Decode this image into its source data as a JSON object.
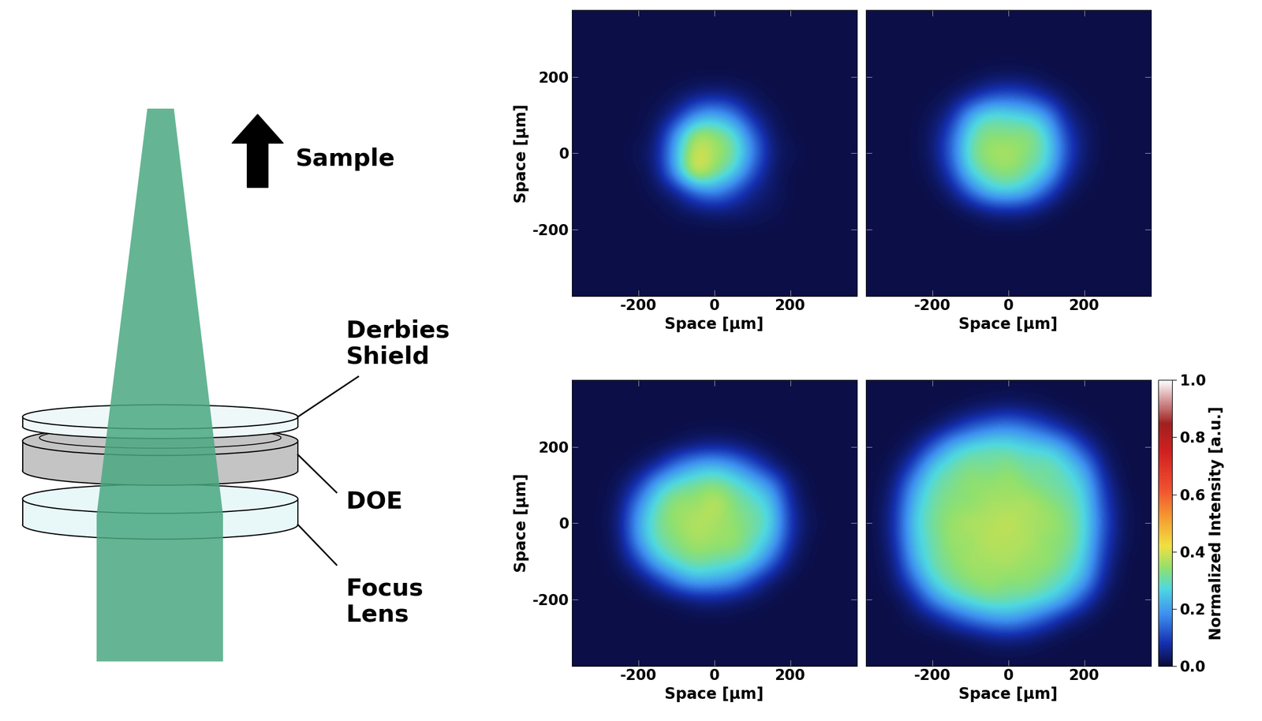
{
  "diagram": {
    "sample_label": "Sample",
    "components": [
      {
        "label": "Derbies\nShield"
      },
      {
        "label": "DOE"
      },
      {
        "label": "Focus\nLens"
      }
    ]
  },
  "chart_data": [
    {
      "type": "heatmap",
      "x_label": "Space [µm]",
      "y_label": "Space [µm]",
      "xlim": [
        -375,
        375
      ],
      "ylim": [
        -375,
        375
      ],
      "xticks": [
        -200,
        0,
        200
      ],
      "yticks": [
        -200,
        0,
        200
      ],
      "tick_labels": true,
      "cells": [
        [
          0.01,
          0.01,
          0.01,
          0.01,
          0.01,
          0.01,
          0.01,
          0.01,
          0.01,
          0.01,
          0.01,
          0.01,
          0.01,
          0.01,
          0.01
        ],
        [
          0.01,
          0.01,
          0.01,
          0.01,
          0.01,
          0.01,
          0.01,
          0.01,
          0.01,
          0.01,
          0.01,
          0.01,
          0.01,
          0.01,
          0.01
        ],
        [
          0.01,
          0.01,
          0.01,
          0.01,
          0.01,
          0.01,
          0.01,
          0.01,
          0.01,
          0.01,
          0.01,
          0.01,
          0.01,
          0.01,
          0.01
        ],
        [
          0.01,
          0.01,
          0.01,
          0.01,
          0.01,
          0.01,
          0.01,
          0.01,
          0.01,
          0.01,
          0.01,
          0.01,
          0.01,
          0.01,
          0.01
        ],
        [
          0.01,
          0.01,
          0.01,
          0.01,
          0.01,
          0.02,
          0.04,
          0.05,
          0.04,
          0.02,
          0.01,
          0.01,
          0.01,
          0.01,
          0.01
        ],
        [
          0.01,
          0.01,
          0.01,
          0.01,
          0.02,
          0.06,
          0.18,
          0.22,
          0.16,
          0.05,
          0.02,
          0.01,
          0.01,
          0.01,
          0.01
        ],
        [
          0.01,
          0.01,
          0.01,
          0.01,
          0.03,
          0.2,
          0.38,
          0.35,
          0.3,
          0.14,
          0.03,
          0.01,
          0.01,
          0.01,
          0.01
        ],
        [
          0.01,
          0.01,
          0.01,
          0.02,
          0.05,
          0.24,
          0.42,
          0.36,
          0.33,
          0.18,
          0.04,
          0.02,
          0.01,
          0.01,
          0.01
        ],
        [
          0.01,
          0.01,
          0.01,
          0.01,
          0.04,
          0.22,
          0.45,
          0.34,
          0.28,
          0.12,
          0.03,
          0.01,
          0.01,
          0.01,
          0.01
        ],
        [
          0.01,
          0.01,
          0.01,
          0.01,
          0.02,
          0.05,
          0.15,
          0.2,
          0.12,
          0.05,
          0.03,
          0.01,
          0.01,
          0.01,
          0.01
        ],
        [
          0.01,
          0.01,
          0.01,
          0.01,
          0.01,
          0.02,
          0.03,
          0.04,
          0.04,
          0.03,
          0.02,
          0.01,
          0.01,
          0.01,
          0.01
        ],
        [
          0.01,
          0.01,
          0.01,
          0.01,
          0.01,
          0.01,
          0.01,
          0.01,
          0.01,
          0.01,
          0.01,
          0.01,
          0.01,
          0.01,
          0.01
        ],
        [
          0.01,
          0.01,
          0.01,
          0.01,
          0.01,
          0.01,
          0.01,
          0.01,
          0.01,
          0.01,
          0.01,
          0.01,
          0.01,
          0.01,
          0.01
        ],
        [
          0.01,
          0.01,
          0.01,
          0.01,
          0.01,
          0.01,
          0.01,
          0.01,
          0.01,
          0.01,
          0.01,
          0.01,
          0.01,
          0.01,
          0.01
        ],
        [
          0.01,
          0.01,
          0.01,
          0.01,
          0.01,
          0.01,
          0.01,
          0.01,
          0.01,
          0.01,
          0.01,
          0.01,
          0.01,
          0.01,
          0.01
        ]
      ]
    },
    {
      "type": "heatmap",
      "x_label": "Space [µm]",
      "xlim": [
        -375,
        375
      ],
      "ylim": [
        -375,
        375
      ],
      "xticks": [
        -200,
        0,
        200
      ],
      "yticks": [
        -200,
        0,
        200
      ],
      "tick_labels": "x",
      "cells": [
        [
          0.01,
          0.01,
          0.01,
          0.01,
          0.01,
          0.01,
          0.01,
          0.01,
          0.01,
          0.01,
          0.01,
          0.01,
          0.01,
          0.01,
          0.01
        ],
        [
          0.01,
          0.01,
          0.01,
          0.01,
          0.01,
          0.01,
          0.01,
          0.01,
          0.01,
          0.01,
          0.01,
          0.01,
          0.01,
          0.01,
          0.01
        ],
        [
          0.01,
          0.01,
          0.01,
          0.01,
          0.01,
          0.01,
          0.01,
          0.01,
          0.01,
          0.01,
          0.01,
          0.01,
          0.01,
          0.01,
          0.01
        ],
        [
          0.01,
          0.01,
          0.01,
          0.01,
          0.01,
          0.01,
          0.02,
          0.02,
          0.02,
          0.01,
          0.01,
          0.01,
          0.01,
          0.01,
          0.01
        ],
        [
          0.01,
          0.01,
          0.01,
          0.01,
          0.02,
          0.05,
          0.1,
          0.12,
          0.1,
          0.05,
          0.02,
          0.01,
          0.01,
          0.01,
          0.01
        ],
        [
          0.01,
          0.01,
          0.01,
          0.02,
          0.06,
          0.22,
          0.3,
          0.28,
          0.26,
          0.2,
          0.05,
          0.02,
          0.01,
          0.01,
          0.01
        ],
        [
          0.01,
          0.01,
          0.01,
          0.03,
          0.12,
          0.3,
          0.34,
          0.32,
          0.35,
          0.28,
          0.1,
          0.03,
          0.01,
          0.01,
          0.01
        ],
        [
          0.01,
          0.01,
          0.01,
          0.03,
          0.14,
          0.32,
          0.36,
          0.38,
          0.33,
          0.3,
          0.12,
          0.03,
          0.01,
          0.01,
          0.01
        ],
        [
          0.01,
          0.01,
          0.01,
          0.02,
          0.1,
          0.28,
          0.33,
          0.35,
          0.31,
          0.26,
          0.08,
          0.02,
          0.01,
          0.01,
          0.01
        ],
        [
          0.01,
          0.01,
          0.01,
          0.01,
          0.04,
          0.15,
          0.26,
          0.28,
          0.24,
          0.12,
          0.03,
          0.01,
          0.01,
          0.01,
          0.01
        ],
        [
          0.01,
          0.01,
          0.01,
          0.01,
          0.01,
          0.02,
          0.05,
          0.06,
          0.05,
          0.02,
          0.01,
          0.01,
          0.01,
          0.01,
          0.01
        ],
        [
          0.01,
          0.01,
          0.01,
          0.01,
          0.01,
          0.01,
          0.01,
          0.01,
          0.01,
          0.01,
          0.01,
          0.01,
          0.01,
          0.01,
          0.01
        ],
        [
          0.01,
          0.01,
          0.01,
          0.01,
          0.01,
          0.01,
          0.01,
          0.01,
          0.01,
          0.01,
          0.01,
          0.01,
          0.01,
          0.01,
          0.01
        ],
        [
          0.01,
          0.01,
          0.01,
          0.01,
          0.01,
          0.01,
          0.01,
          0.01,
          0.01,
          0.01,
          0.01,
          0.01,
          0.01,
          0.01,
          0.01
        ],
        [
          0.01,
          0.01,
          0.01,
          0.01,
          0.01,
          0.01,
          0.01,
          0.01,
          0.01,
          0.01,
          0.01,
          0.01,
          0.01,
          0.01,
          0.01
        ]
      ]
    },
    {
      "type": "heatmap",
      "x_label": "Space [µm]",
      "y_label": "Space [µm]",
      "xlim": [
        -375,
        375
      ],
      "ylim": [
        -375,
        375
      ],
      "xticks": [
        -200,
        0,
        200
      ],
      "yticks": [
        -200,
        0,
        200
      ],
      "tick_labels": true,
      "cells": [
        [
          0.01,
          0.01,
          0.01,
          0.01,
          0.01,
          0.01,
          0.01,
          0.01,
          0.01,
          0.01,
          0.01,
          0.01,
          0.01,
          0.01,
          0.01
        ],
        [
          0.01,
          0.01,
          0.01,
          0.01,
          0.01,
          0.01,
          0.01,
          0.01,
          0.01,
          0.01,
          0.01,
          0.01,
          0.01,
          0.01,
          0.01
        ],
        [
          0.01,
          0.01,
          0.01,
          0.01,
          0.01,
          0.01,
          0.01,
          0.01,
          0.01,
          0.01,
          0.01,
          0.01,
          0.01,
          0.01,
          0.01
        ],
        [
          0.01,
          0.01,
          0.01,
          0.01,
          0.01,
          0.02,
          0.04,
          0.05,
          0.04,
          0.02,
          0.01,
          0.01,
          0.01,
          0.01,
          0.01
        ],
        [
          0.01,
          0.01,
          0.01,
          0.02,
          0.06,
          0.16,
          0.22,
          0.24,
          0.2,
          0.12,
          0.04,
          0.01,
          0.01,
          0.01,
          0.01
        ],
        [
          0.01,
          0.01,
          0.02,
          0.08,
          0.24,
          0.3,
          0.32,
          0.34,
          0.3,
          0.26,
          0.18,
          0.04,
          0.01,
          0.01,
          0.01
        ],
        [
          0.01,
          0.01,
          0.03,
          0.18,
          0.3,
          0.36,
          0.34,
          0.4,
          0.33,
          0.3,
          0.26,
          0.06,
          0.01,
          0.01,
          0.01
        ],
        [
          0.01,
          0.01,
          0.04,
          0.22,
          0.32,
          0.35,
          0.38,
          0.36,
          0.34,
          0.32,
          0.28,
          0.08,
          0.02,
          0.01,
          0.01
        ],
        [
          0.01,
          0.01,
          0.03,
          0.2,
          0.31,
          0.33,
          0.37,
          0.35,
          0.36,
          0.3,
          0.24,
          0.06,
          0.01,
          0.01,
          0.01
        ],
        [
          0.01,
          0.01,
          0.02,
          0.1,
          0.25,
          0.3,
          0.33,
          0.31,
          0.3,
          0.27,
          0.14,
          0.03,
          0.01,
          0.01,
          0.01
        ],
        [
          0.01,
          0.01,
          0.01,
          0.02,
          0.08,
          0.18,
          0.24,
          0.22,
          0.2,
          0.1,
          0.03,
          0.01,
          0.01,
          0.01,
          0.01
        ],
        [
          0.01,
          0.01,
          0.01,
          0.01,
          0.01,
          0.02,
          0.04,
          0.05,
          0.03,
          0.02,
          0.01,
          0.01,
          0.01,
          0.01,
          0.01
        ],
        [
          0.01,
          0.01,
          0.01,
          0.01,
          0.01,
          0.01,
          0.01,
          0.01,
          0.01,
          0.01,
          0.01,
          0.01,
          0.01,
          0.01,
          0.01
        ],
        [
          0.01,
          0.01,
          0.01,
          0.01,
          0.01,
          0.01,
          0.01,
          0.01,
          0.01,
          0.01,
          0.01,
          0.01,
          0.01,
          0.01,
          0.01
        ],
        [
          0.01,
          0.01,
          0.01,
          0.01,
          0.01,
          0.01,
          0.01,
          0.01,
          0.01,
          0.01,
          0.01,
          0.01,
          0.01,
          0.01,
          0.01
        ]
      ]
    },
    {
      "type": "heatmap",
      "x_label": "Space [µm]",
      "xlim": [
        -375,
        375
      ],
      "ylim": [
        -375,
        375
      ],
      "xticks": [
        -200,
        0,
        200
      ],
      "yticks": [
        -200,
        0,
        200
      ],
      "tick_labels": "x",
      "colorbar_label": "Normalized Intensity [a.u.]",
      "colorbar_range": [
        0.0,
        1.0
      ],
      "colorbar_ticks": [
        {
          "value": 0,
          "label": "0.0"
        },
        {
          "value": 0.2,
          "label": "0.2"
        },
        {
          "value": 0.4,
          "label": "0.4"
        },
        {
          "value": 0.6,
          "label": "0.6"
        },
        {
          "value": 0.8,
          "label": "0.8"
        },
        {
          "value": 1,
          "label": "1.0"
        }
      ],
      "cells": [
        [
          0.01,
          0.01,
          0.01,
          0.01,
          0.01,
          0.01,
          0.01,
          0.01,
          0.01,
          0.01,
          0.01,
          0.01,
          0.01,
          0.01,
          0.01
        ],
        [
          0.01,
          0.01,
          0.01,
          0.01,
          0.01,
          0.02,
          0.03,
          0.04,
          0.03,
          0.02,
          0.01,
          0.01,
          0.01,
          0.01,
          0.01
        ],
        [
          0.01,
          0.01,
          0.01,
          0.02,
          0.06,
          0.12,
          0.16,
          0.18,
          0.15,
          0.1,
          0.05,
          0.02,
          0.01,
          0.01,
          0.01
        ],
        [
          0.01,
          0.01,
          0.03,
          0.12,
          0.24,
          0.28,
          0.3,
          0.29,
          0.27,
          0.26,
          0.2,
          0.08,
          0.02,
          0.01,
          0.01
        ],
        [
          0.01,
          0.02,
          0.1,
          0.26,
          0.3,
          0.33,
          0.31,
          0.34,
          0.3,
          0.32,
          0.28,
          0.2,
          0.04,
          0.01,
          0.01
        ],
        [
          0.01,
          0.04,
          0.2,
          0.3,
          0.32,
          0.35,
          0.34,
          0.36,
          0.33,
          0.31,
          0.3,
          0.26,
          0.08,
          0.01,
          0.01
        ],
        [
          0.01,
          0.06,
          0.24,
          0.31,
          0.34,
          0.33,
          0.37,
          0.35,
          0.38,
          0.34,
          0.32,
          0.28,
          0.1,
          0.02,
          0.01
        ],
        [
          0.01,
          0.07,
          0.26,
          0.32,
          0.35,
          0.38,
          0.36,
          0.4,
          0.35,
          0.37,
          0.33,
          0.29,
          0.12,
          0.02,
          0.01
        ],
        [
          0.01,
          0.06,
          0.25,
          0.3,
          0.36,
          0.34,
          0.39,
          0.36,
          0.38,
          0.33,
          0.34,
          0.28,
          0.1,
          0.02,
          0.01
        ],
        [
          0.01,
          0.04,
          0.22,
          0.31,
          0.33,
          0.37,
          0.35,
          0.38,
          0.34,
          0.36,
          0.31,
          0.26,
          0.08,
          0.01,
          0.01
        ],
        [
          0.01,
          0.03,
          0.14,
          0.28,
          0.32,
          0.34,
          0.36,
          0.33,
          0.35,
          0.31,
          0.29,
          0.22,
          0.05,
          0.01,
          0.01
        ],
        [
          0.01,
          0.01,
          0.05,
          0.18,
          0.26,
          0.3,
          0.32,
          0.31,
          0.3,
          0.28,
          0.22,
          0.1,
          0.02,
          0.01,
          0.01
        ],
        [
          0.01,
          0.01,
          0.02,
          0.04,
          0.1,
          0.16,
          0.2,
          0.22,
          0.18,
          0.12,
          0.05,
          0.02,
          0.01,
          0.01,
          0.01
        ],
        [
          0.01,
          0.01,
          0.01,
          0.01,
          0.01,
          0.02,
          0.04,
          0.05,
          0.04,
          0.02,
          0.01,
          0.01,
          0.01,
          0.01,
          0.01
        ],
        [
          0.01,
          0.01,
          0.01,
          0.01,
          0.01,
          0.01,
          0.01,
          0.01,
          0.01,
          0.01,
          0.01,
          0.01,
          0.01,
          0.01,
          0.01
        ]
      ]
    }
  ]
}
